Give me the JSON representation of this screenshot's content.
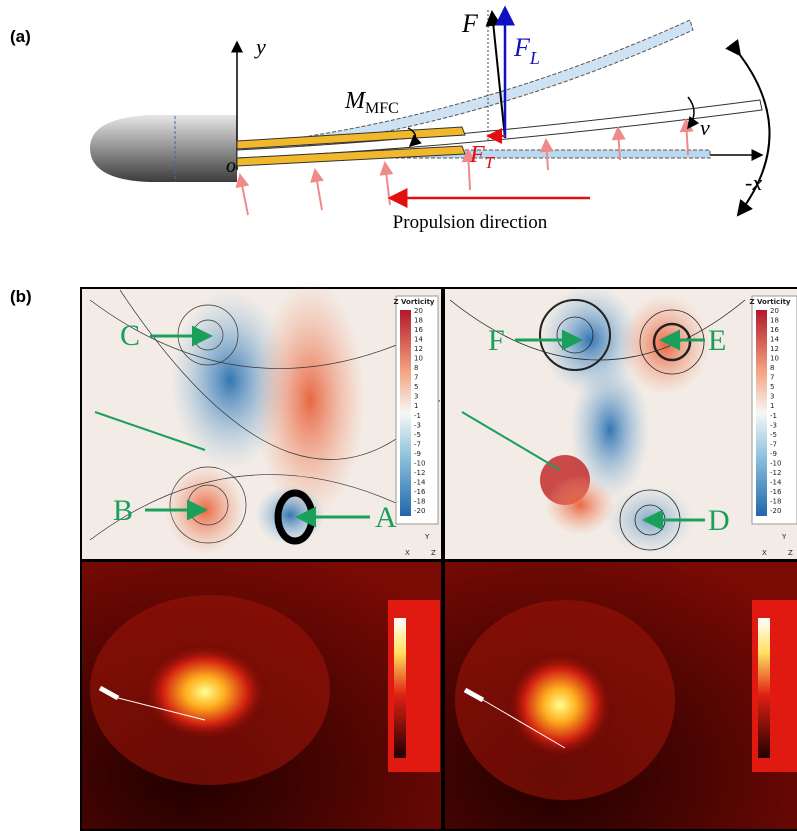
{
  "panel_a": {
    "label": "(a)",
    "axis_y": "y",
    "origin": "o",
    "axis_x": "-x",
    "force_F": "F",
    "lift": {
      "symbol": "F",
      "subscript": "L"
    },
    "thrust": {
      "symbol": "F",
      "subscript": "T"
    },
    "moment": {
      "symbol": "M",
      "subscript": "MFC"
    },
    "velocity": "v",
    "caption": "Propulsion direction"
  },
  "panel_b": {
    "label": "(b)",
    "colorbar_title": "Z Vorticity",
    "colorbar_ticks": [
      20,
      18,
      16,
      14,
      12,
      10,
      8,
      7,
      5,
      3,
      1,
      -1,
      -3,
      -5,
      -7,
      -9,
      -10,
      -12,
      -14,
      -16,
      -18,
      -20
    ],
    "left_markers": [
      "C",
      "B",
      "A"
    ],
    "right_markers": [
      "F",
      "E",
      "D"
    ],
    "axis_triad": [
      "Y",
      "X",
      "Z"
    ]
  }
}
